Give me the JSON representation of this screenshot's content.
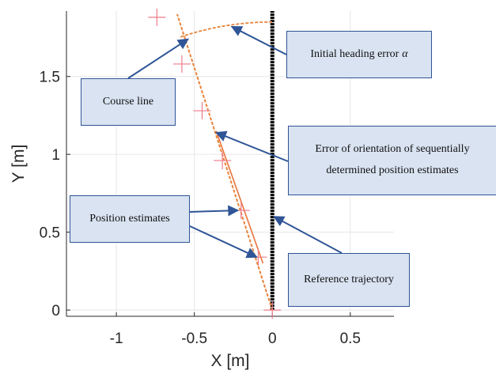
{
  "chart_data": {
    "type": "line",
    "xlabel": "X [m]",
    "ylabel": "Y [m]",
    "xlim": [
      -1.32,
      0.78
    ],
    "ylim": [
      -0.04,
      1.92
    ],
    "xticks": [
      -1,
      -0.5,
      0,
      0.5
    ],
    "xtick_labels": [
      "-1",
      "-0.5",
      "0",
      "0.5"
    ],
    "yticks": [
      0,
      0.5,
      1,
      1.5
    ],
    "ytick_labels": [
      "0",
      "0.5",
      "1",
      "1.5"
    ],
    "grid": true,
    "series": [
      {
        "kind": "reference-trajectory",
        "color": "#000000",
        "x": [
          0,
          0
        ],
        "y": [
          0,
          1.92
        ]
      },
      {
        "kind": "course-line",
        "color": "#e8833a",
        "x": [
          0,
          -0.61
        ],
        "y": [
          0,
          1.9
        ]
      },
      {
        "kind": "orientation-error-line",
        "color": "#e8733a",
        "x": [
          -0.06,
          -0.36
        ],
        "y": [
          0.3,
          1.15
        ]
      },
      {
        "kind": "heading-error-arc",
        "color": "#e8833a",
        "center": [
          0,
          0
        ],
        "radius": 1.85,
        "angle_from_y_axis_deg": [
          0,
          18.9
        ]
      },
      {
        "kind": "position-estimates",
        "color": "#ee7b8a",
        "marker": "+",
        "x": [
          0,
          -0.09,
          -0.2,
          -0.32,
          -0.45,
          -0.58,
          -0.74
        ],
        "y": [
          0,
          0.34,
          0.64,
          0.96,
          1.28,
          1.58,
          1.88
        ]
      }
    ],
    "annotations": [
      {
        "id": "heading",
        "text": "Initial heading error",
        "symbol": "α",
        "arrow_to": [
          -0.26,
          1.82
        ]
      },
      {
        "id": "course",
        "text": "Course line",
        "arrow_to": [
          -0.54,
          1.74
        ]
      },
      {
        "id": "orientation",
        "lines": [
          "Error of orientation of sequentially",
          "determined position estimates"
        ],
        "arrow_to": [
          -0.36,
          1.14
        ]
      },
      {
        "id": "position",
        "text": "Position estimates",
        "arrows_to": [
          [
            -0.22,
            0.64
          ],
          [
            -0.1,
            0.34
          ]
        ]
      },
      {
        "id": "reference",
        "text": "Reference trajectory",
        "arrow_to": [
          0.01,
          0.6
        ]
      }
    ]
  }
}
